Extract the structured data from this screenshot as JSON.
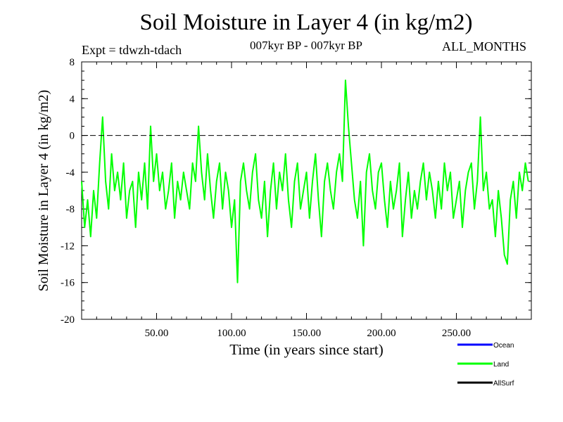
{
  "header": {
    "title": "Soil Moisture in Layer 4 (in kg/m2)",
    "expt": "Expt = tdwzh-tdach",
    "period": "007kyr BP - 007kyr BP",
    "months": "ALL_MONTHS"
  },
  "chart_data": {
    "type": "line",
    "title": "Soil Moisture in Layer 4 (in kg/m2)",
    "xlabel": "Time (in years since start)",
    "ylabel": "Soil Moisture in Layer 4 (in kg/m2)",
    "xlim": [
      0,
      300
    ],
    "ylim": [
      -20,
      8
    ],
    "x_ticks": [
      50,
      100,
      150,
      200,
      250
    ],
    "x_tick_labels": [
      "50.00",
      "100.00",
      "150.00",
      "200.00",
      "250.00"
    ],
    "y_ticks": [
      -20,
      -16,
      -12,
      -8,
      -4,
      0,
      4,
      8
    ],
    "y_tick_labels": [
      "-20",
      "-16",
      "-12",
      "-8",
      "-4",
      "0",
      "4",
      "8"
    ],
    "reference_line": 0,
    "grid": false,
    "legend_position": "bottom-right",
    "legend": [
      {
        "name": "Ocean",
        "color": "#0000ff"
      },
      {
        "name": "Land",
        "color": "#00ff00"
      },
      {
        "name": "AllSurf",
        "color": "#000000"
      }
    ],
    "series": [
      {
        "name": "Land",
        "color": "#00ff00",
        "x": [
          0,
          2,
          4,
          6,
          8,
          10,
          12,
          14,
          16,
          18,
          20,
          22,
          24,
          26,
          28,
          30,
          32,
          34,
          36,
          38,
          40,
          42,
          44,
          46,
          48,
          50,
          52,
          54,
          56,
          58,
          60,
          62,
          64,
          66,
          68,
          70,
          72,
          74,
          76,
          78,
          80,
          82,
          84,
          86,
          88,
          90,
          92,
          94,
          96,
          98,
          100,
          102,
          104,
          106,
          108,
          110,
          112,
          114,
          116,
          118,
          120,
          122,
          124,
          126,
          128,
          130,
          132,
          134,
          136,
          138,
          140,
          142,
          144,
          146,
          148,
          150,
          152,
          154,
          156,
          158,
          160,
          162,
          164,
          166,
          168,
          170,
          172,
          174,
          176,
          178,
          180,
          182,
          184,
          186,
          188,
          190,
          192,
          194,
          196,
          198,
          200,
          202,
          204,
          206,
          208,
          210,
          212,
          214,
          216,
          218,
          220,
          222,
          224,
          226,
          228,
          230,
          232,
          234,
          236,
          238,
          240,
          242,
          244,
          246,
          248,
          250,
          252,
          254,
          256,
          258,
          260,
          262,
          264,
          266,
          268,
          270,
          272,
          274,
          276,
          278,
          280,
          282,
          284,
          286,
          288,
          290,
          292,
          294,
          296,
          298
        ],
        "y": [
          -5,
          -10,
          -7,
          -11,
          -6,
          -9,
          -3,
          2,
          -5,
          -8,
          -2,
          -6,
          -4,
          -7,
          -3,
          -9,
          -6,
          -5,
          -10,
          -4,
          -7,
          -3,
          -8,
          1,
          -5,
          -2,
          -6,
          -4,
          -8,
          -6,
          -3,
          -9,
          -5,
          -7,
          -4,
          -6,
          -8,
          -3,
          -5,
          1,
          -4,
          -7,
          -2,
          -6,
          -9,
          -5,
          -3,
          -8,
          -4,
          -6,
          -10,
          -7,
          -16,
          -5,
          -3,
          -6,
          -8,
          -4,
          -2,
          -7,
          -9,
          -5,
          -11,
          -6,
          -3,
          -8,
          -4,
          -6,
          -2,
          -7,
          -10,
          -5,
          -3,
          -8,
          -6,
          -4,
          -9,
          -5,
          -2,
          -7,
          -11,
          -5,
          -3,
          -6,
          -8,
          -4,
          -2,
          -5,
          6,
          1,
          -3,
          -7,
          -9,
          -5,
          -12,
          -4,
          -2,
          -6,
          -8,
          -4,
          -3,
          -7,
          -10,
          -5,
          -8,
          -6,
          -3,
          -11,
          -7,
          -4,
          -9,
          -6,
          -8,
          -5,
          -3,
          -7,
          -4,
          -6,
          -9,
          -5,
          -8,
          -3,
          -6,
          -4,
          -9,
          -7,
          -5,
          -10,
          -6,
          -4,
          -3,
          -8,
          -5,
          2,
          -6,
          -4,
          -8,
          -7,
          -11,
          -6,
          -9,
          -13,
          -14,
          -7,
          -5,
          -9,
          -4,
          -6,
          -3,
          -5
        ]
      }
    ]
  }
}
